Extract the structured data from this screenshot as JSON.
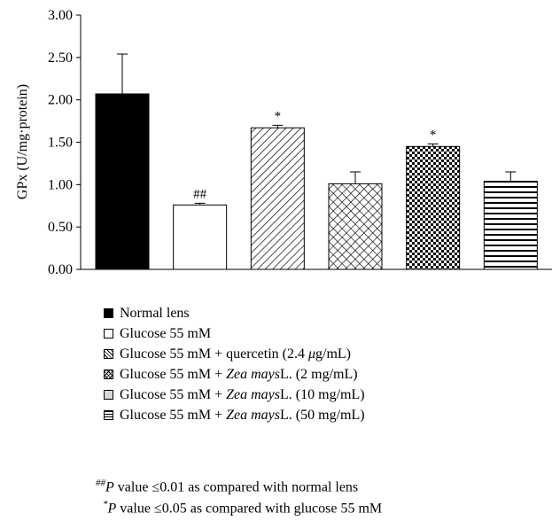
{
  "chart_data": {
    "type": "bar",
    "ylabel": "GPx (U/mg·protein)",
    "ylim": [
      0,
      3
    ],
    "yticks": [
      "0.00",
      "0.50",
      "1.00",
      "1.50",
      "2.00",
      "2.50",
      "3.00"
    ],
    "grid": false,
    "legend_position": "bottom",
    "series": [
      {
        "name": "Normal lens",
        "value": 2.07,
        "error": 0.47,
        "pattern": "solid-black",
        "annotation": ""
      },
      {
        "name": "Glucose 55 mM",
        "value": 0.76,
        "error": 0.02,
        "pattern": "white",
        "annotation": "##"
      },
      {
        "name": "Glucose 55 mM + quercetin (2.4 μg/mL)",
        "value": 1.67,
        "error": 0.03,
        "pattern": "diagonal-stripes",
        "annotation": "*"
      },
      {
        "name": "Glucose 55 mM + Zea mays L. (2 mg/mL)",
        "value": 1.01,
        "error": 0.14,
        "pattern": "crosshatch",
        "annotation": ""
      },
      {
        "name": "Glucose 55 mM + Zea mays L. (10 mg/mL)",
        "value": 1.45,
        "error": 0.03,
        "pattern": "dots",
        "annotation": "*"
      },
      {
        "name": "Glucose 55 mM + Zea mays L. (50 mg/mL)",
        "value": 1.04,
        "error": 0.11,
        "pattern": "horizontal-stripes",
        "annotation": ""
      }
    ]
  },
  "legend": [
    {
      "pre": "Normal lens",
      "ital": "",
      "post": ""
    },
    {
      "pre": "Glucose 55 mM",
      "ital": "",
      "post": ""
    },
    {
      "pre": "Glucose 55 mM + quercetin (2.4 ",
      "ital": "μ",
      "post": "g/mL)"
    },
    {
      "pre": "Glucose 55 mM + ",
      "ital": "Zea mays",
      "post": " L. (2 mg/mL)"
    },
    {
      "pre": "Glucose 55 mM + ",
      "ital": "Zea mays",
      "post": " L. (10 mg/mL)"
    },
    {
      "pre": "Glucose 55 mM + ",
      "ital": "Zea mays",
      "post": " L. (50 mg/mL)"
    }
  ],
  "notes": {
    "note1": {
      "sup": "##",
      "p": "P",
      "text": " value ≤0.01 as compared with normal lens"
    },
    "note2": {
      "sup": "*",
      "p": "P",
      "text": " value ≤0.05 as compared with glucose 55 mM"
    }
  }
}
